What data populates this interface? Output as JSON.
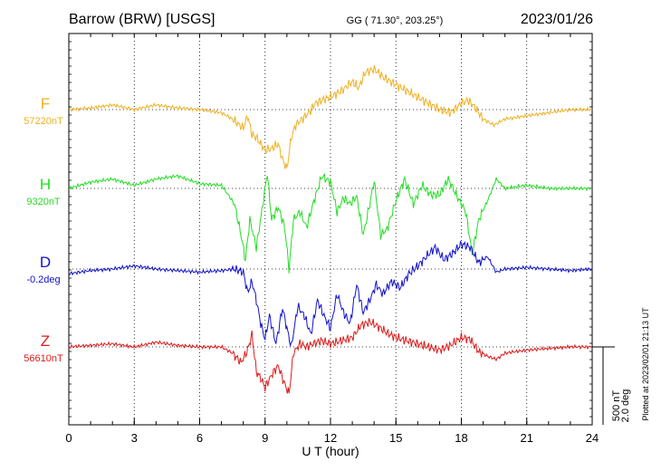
{
  "header": {
    "station": "Barrow (BRW)  [USGS]",
    "coords": "GG ( 71.30°, 203.25°)",
    "date": "2023/01/26"
  },
  "side_note": "Plotted at 2023/02/01 21:13 UT",
  "scale_bar": {
    "line1": "500 nT",
    "line2": "2.0 deg"
  },
  "chart_data": {
    "type": "line",
    "xlabel": "U T (hour)",
    "xlim": [
      0,
      24
    ],
    "x_ticks": [
      "0",
      "3",
      "6",
      "9",
      "12",
      "15",
      "18",
      "21",
      "24"
    ],
    "grid": true,
    "y_scale_note": "500 nT per scale bar",
    "series": [
      {
        "name": "F",
        "baseline_label": "57220nT",
        "color": "#f0b020",
        "x": [
          0,
          1,
          2,
          3,
          4,
          5,
          6,
          7,
          7.5,
          8,
          8.2,
          8.4,
          8.6,
          8.8,
          9,
          9.3,
          9.6,
          9.8,
          10,
          10.2,
          10.4,
          10.7,
          11,
          11.3,
          11.6,
          12,
          12.5,
          13,
          13.3,
          13.6,
          14,
          14.5,
          15,
          15.5,
          16,
          16.5,
          17,
          17.5,
          18,
          18.3,
          18.6,
          19,
          19.5,
          20,
          21,
          22,
          23,
          24
        ],
        "y": [
          0,
          10,
          30,
          0,
          30,
          10,
          0,
          -20,
          -60,
          -120,
          -40,
          -160,
          -180,
          -220,
          -260,
          -250,
          -220,
          -320,
          -380,
          -180,
          -100,
          -60,
          -20,
          40,
          60,
          80,
          120,
          180,
          140,
          240,
          260,
          200,
          160,
          120,
          80,
          40,
          0,
          -20,
          40,
          60,
          20,
          -60,
          -100,
          -60,
          -40,
          -20,
          0,
          0
        ]
      },
      {
        "name": "H",
        "baseline_label": "9320nT",
        "color": "#22dd22",
        "x": [
          0,
          1,
          2,
          3,
          4,
          5,
          6,
          7,
          7.6,
          7.9,
          8.1,
          8.3,
          8.6,
          8.9,
          9.1,
          9.3,
          9.6,
          9.9,
          10.1,
          10.3,
          10.6,
          10.9,
          11.2,
          11.6,
          12,
          12.3,
          12.6,
          12.9,
          13.2,
          13.5,
          13.8,
          14,
          14.3,
          14.6,
          15,
          15.4,
          15.8,
          16.2,
          16.6,
          17,
          17.4,
          17.8,
          18.2,
          18.5,
          18.8,
          19.2,
          19.6,
          20,
          21,
          22,
          23,
          24
        ],
        "y": [
          0,
          40,
          60,
          20,
          60,
          80,
          30,
          20,
          -100,
          -300,
          -460,
          -200,
          -380,
          -100,
          100,
          -200,
          -120,
          -250,
          -520,
          -200,
          -150,
          -250,
          -100,
          80,
          40,
          -150,
          -60,
          -100,
          -50,
          -300,
          -100,
          50,
          -300,
          -260,
          -80,
          60,
          -100,
          20,
          -40,
          -40,
          60,
          -50,
          -150,
          -420,
          -200,
          -80,
          60,
          0,
          20,
          0,
          0,
          0
        ]
      },
      {
        "name": "D",
        "baseline_label": "-0.2deg",
        "color": "#1010cc",
        "x": [
          0,
          1,
          2,
          3,
          4,
          5,
          6,
          7,
          7.6,
          8,
          8.2,
          8.4,
          8.6,
          8.8,
          9,
          9.2,
          9.5,
          9.8,
          10,
          10.2,
          10.5,
          10.8,
          11.1,
          11.4,
          11.7,
          12,
          12.3,
          12.6,
          12.9,
          13.2,
          13.5,
          13.8,
          14.1,
          14.4,
          14.8,
          15.2,
          15.6,
          16,
          16.4,
          16.8,
          17.2,
          17.6,
          18,
          18.4,
          18.8,
          19.2,
          19.6,
          20,
          21,
          22,
          23,
          24
        ],
        "y": [
          -30,
          -10,
          0,
          20,
          0,
          -10,
          -20,
          -10,
          0,
          -20,
          -150,
          -80,
          -200,
          -350,
          -450,
          -300,
          -480,
          -250,
          -380,
          -500,
          -240,
          -300,
          -420,
          -200,
          -300,
          -380,
          -160,
          -280,
          -350,
          -100,
          -280,
          -200,
          -100,
          -160,
          -80,
          -120,
          -30,
          20,
          80,
          140,
          60,
          100,
          160,
          140,
          40,
          80,
          -20,
          0,
          10,
          0,
          -10,
          0
        ]
      },
      {
        "name": "Z",
        "baseline_label": "56610nT",
        "color": "#dd1a1a",
        "x": [
          0,
          1,
          2,
          3,
          4,
          5,
          6,
          7,
          7.5,
          7.9,
          8.2,
          8.4,
          8.6,
          8.8,
          9,
          9.3,
          9.6,
          9.9,
          10.1,
          10.3,
          10.6,
          10.9,
          11.2,
          11.6,
          12,
          12.5,
          13,
          13.4,
          13.8,
          14.2,
          14.6,
          15,
          15.5,
          16,
          16.5,
          17,
          17.5,
          18,
          18.4,
          18.8,
          19.2,
          19.6,
          20,
          21,
          22,
          23,
          24
        ],
        "y": [
          0,
          10,
          20,
          0,
          30,
          10,
          0,
          0,
          -40,
          -100,
          -20,
          80,
          -160,
          -200,
          -260,
          -180,
          -120,
          -240,
          -300,
          -40,
          20,
          0,
          20,
          40,
          20,
          40,
          60,
          140,
          160,
          130,
          90,
          60,
          40,
          20,
          0,
          -20,
          10,
          60,
          50,
          -30,
          -60,
          -80,
          -40,
          -20,
          -10,
          0,
          0
        ]
      }
    ]
  }
}
